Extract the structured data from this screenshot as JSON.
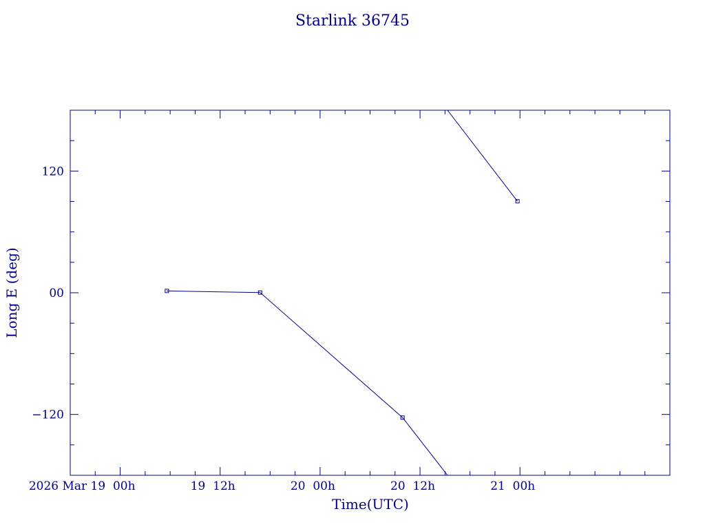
{
  "colors": {
    "ink": "#00008b",
    "background": "#ffffff"
  },
  "chart_data": {
    "type": "line",
    "title": "Starlink 36745",
    "xlabel": "Time(UTC)",
    "ylabel": "Long E (deg)",
    "x_axis": {
      "unit": "hours since 2026 Mar 19 00h UTC",
      "range_hours": [
        -6.0,
        66.0
      ],
      "major_ticks": [
        {
          "hours": 0,
          "label": "2026 Mar 19  00h"
        },
        {
          "hours": 12,
          "label": "19  12h"
        },
        {
          "hours": 24,
          "label": "20  00h"
        },
        {
          "hours": 36,
          "label": "20  12h"
        },
        {
          "hours": 48,
          "label": "21  00h"
        }
      ],
      "minor_tick_step_hours": 3
    },
    "y_axis": {
      "range": [
        -180,
        180
      ],
      "major_ticks": [
        {
          "value": 120,
          "label": "120"
        },
        {
          "value": 0,
          "label": "00"
        },
        {
          "value": -120,
          "label": "−120"
        }
      ],
      "minor_tick_step": 30
    },
    "grid": false,
    "segments": [
      {
        "points": [
          {
            "time": "2026 Mar 19 05.6h",
            "lon": 1.8
          },
          {
            "time": "2026 Mar 19 16.8h",
            "lon": 0.2
          },
          {
            "time": "2026 Mar 20 09.9h",
            "lon": -123.1
          },
          {
            "time": "2026 Mar 20 15.3h",
            "lon": -180.0
          }
        ],
        "markers": [
          0,
          1,
          2
        ]
      },
      {
        "points": [
          {
            "time": "2026 Mar 20 15.3h",
            "lon": 180.0
          },
          {
            "time": "2026 Mar 20 23.7h",
            "lon": 90.2
          }
        ],
        "markers": [
          1
        ]
      }
    ]
  }
}
